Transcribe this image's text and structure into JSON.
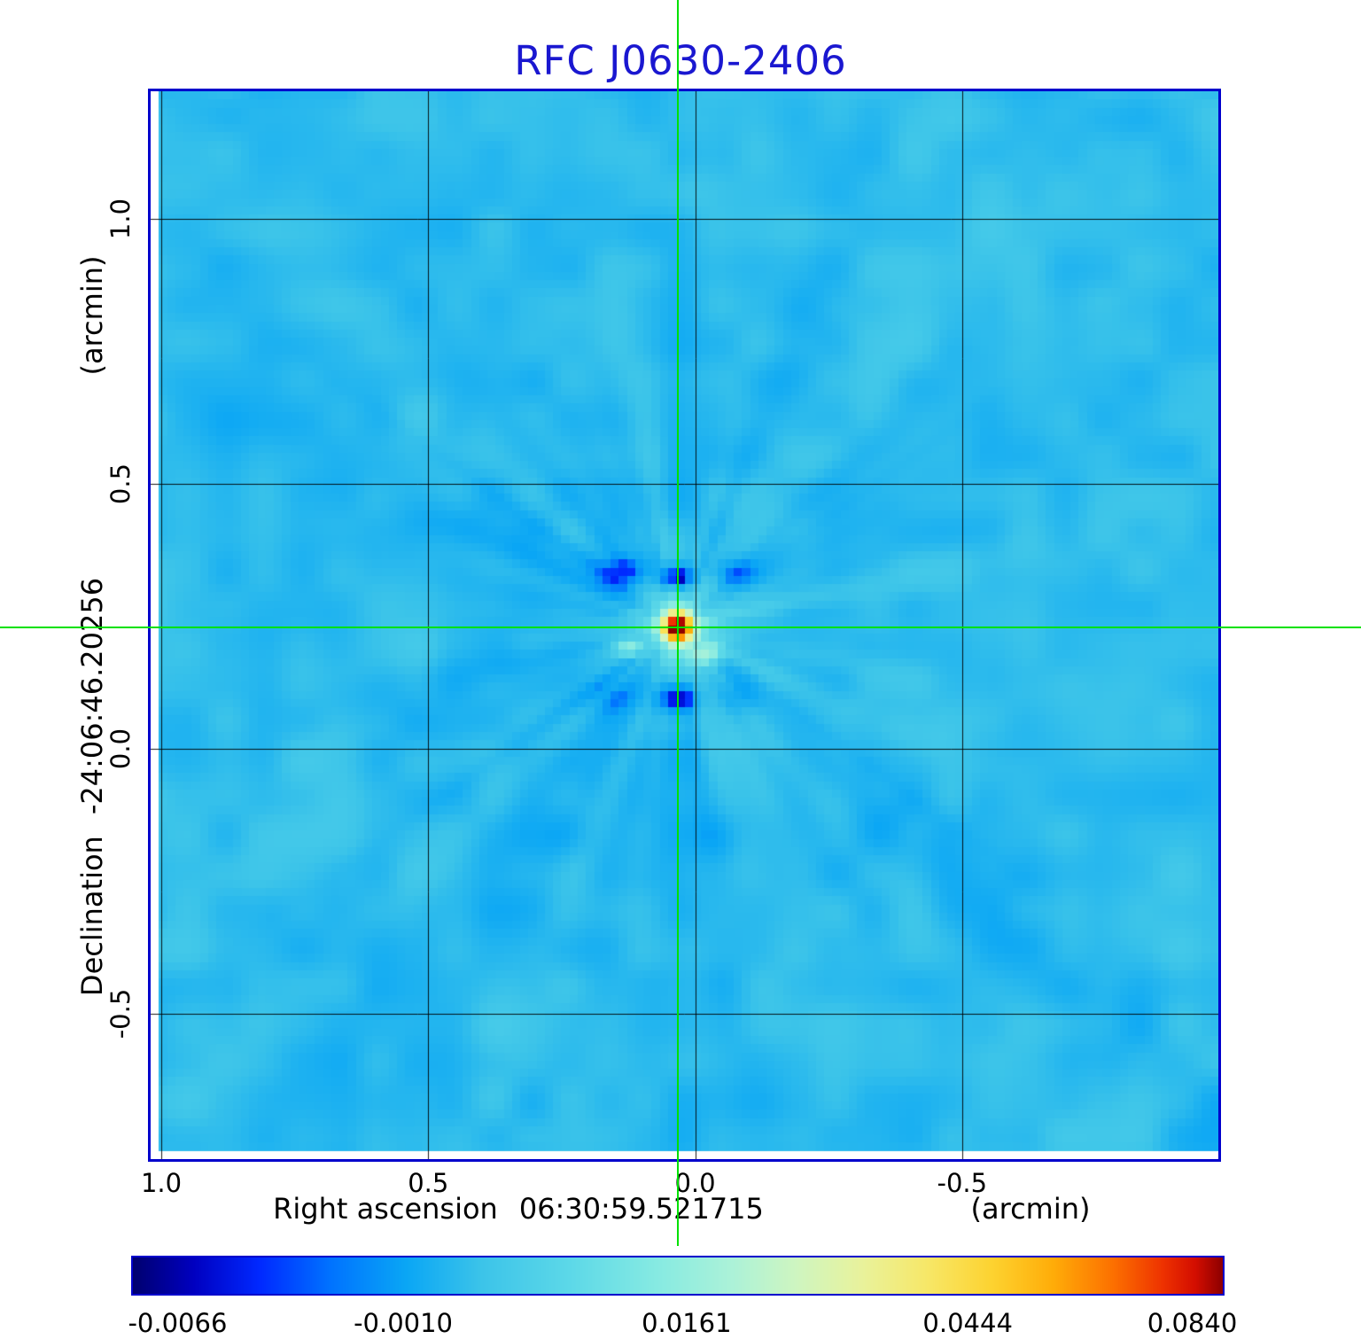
{
  "title": "RFC J0630-2406",
  "colors": {
    "title": "#1a17d0",
    "frame": "#0000cc",
    "grid": "#000000",
    "crosshair": "#00e100",
    "text": "#000000",
    "background": "#ffffff"
  },
  "chart_data": {
    "type": "heatmap",
    "title": "RFC J0630-2406",
    "x_axis": {
      "name": "Right ascension",
      "coordinate": "06:30:59.521715",
      "unit": "(arcmin)",
      "range": [
        1.02,
        -0.98
      ],
      "ticks": [
        {
          "label": "1.0",
          "value": 1.0
        },
        {
          "label": "0.5",
          "value": 0.5
        },
        {
          "label": "0.0",
          "value": 0.0
        },
        {
          "label": "-0.5",
          "value": -0.5
        }
      ]
    },
    "y_axis": {
      "name": "Declination",
      "coordinate": "-24:06:46.20256",
      "unit": "(arcmin)",
      "range": [
        1.24,
        -0.775
      ],
      "ticks": [
        {
          "label": "1.0",
          "value": 1.0
        },
        {
          "label": "0.5",
          "value": 0.5
        },
        {
          "label": "0.0",
          "value": 0.0
        },
        {
          "label": "-0.5",
          "value": -0.5
        }
      ]
    },
    "grid": true,
    "source": {
      "x_arcmin": 0.033,
      "y_arcmin": 0.229,
      "peak_value": 0.084,
      "background_value": 0.002,
      "crosshair_marker": true
    },
    "colorbar": {
      "orientation": "horizontal",
      "min_value": -0.008,
      "max_value": 0.09,
      "ticks": [
        {
          "label": "-0.0066",
          "value": -0.0066,
          "position": 0.041
        },
        {
          "label": "-0.0010",
          "value": -0.001,
          "position": 0.248
        },
        {
          "label": "0.0161",
          "value": 0.0161,
          "position": 0.508
        },
        {
          "label": "0.0444",
          "value": 0.0444,
          "position": 0.766
        },
        {
          "label": "0.0840",
          "value": 0.084,
          "position": 0.972
        }
      ]
    },
    "colormap_stops": [
      {
        "t": 0.0,
        "color": "#000070"
      },
      {
        "t": 0.055,
        "color": "#0000c0"
      },
      {
        "t": 0.115,
        "color": "#0028ff"
      },
      {
        "t": 0.18,
        "color": "#0072ff"
      },
      {
        "t": 0.25,
        "color": "#0aa6f5"
      },
      {
        "t": 0.32,
        "color": "#3cc4e9"
      },
      {
        "t": 0.4,
        "color": "#5cd8e8"
      },
      {
        "t": 0.48,
        "color": "#86eae2"
      },
      {
        "t": 0.55,
        "color": "#acf2d8"
      },
      {
        "t": 0.61,
        "color": "#cff5c0"
      },
      {
        "t": 0.67,
        "color": "#e9f29b"
      },
      {
        "t": 0.73,
        "color": "#f7e767"
      },
      {
        "t": 0.79,
        "color": "#fdd22f"
      },
      {
        "t": 0.845,
        "color": "#ffac08"
      },
      {
        "t": 0.9,
        "color": "#fc7000"
      },
      {
        "t": 0.945,
        "color": "#ee3300"
      },
      {
        "t": 0.975,
        "color": "#d40e00"
      },
      {
        "t": 1.0,
        "color": "#8e0000"
      }
    ]
  }
}
